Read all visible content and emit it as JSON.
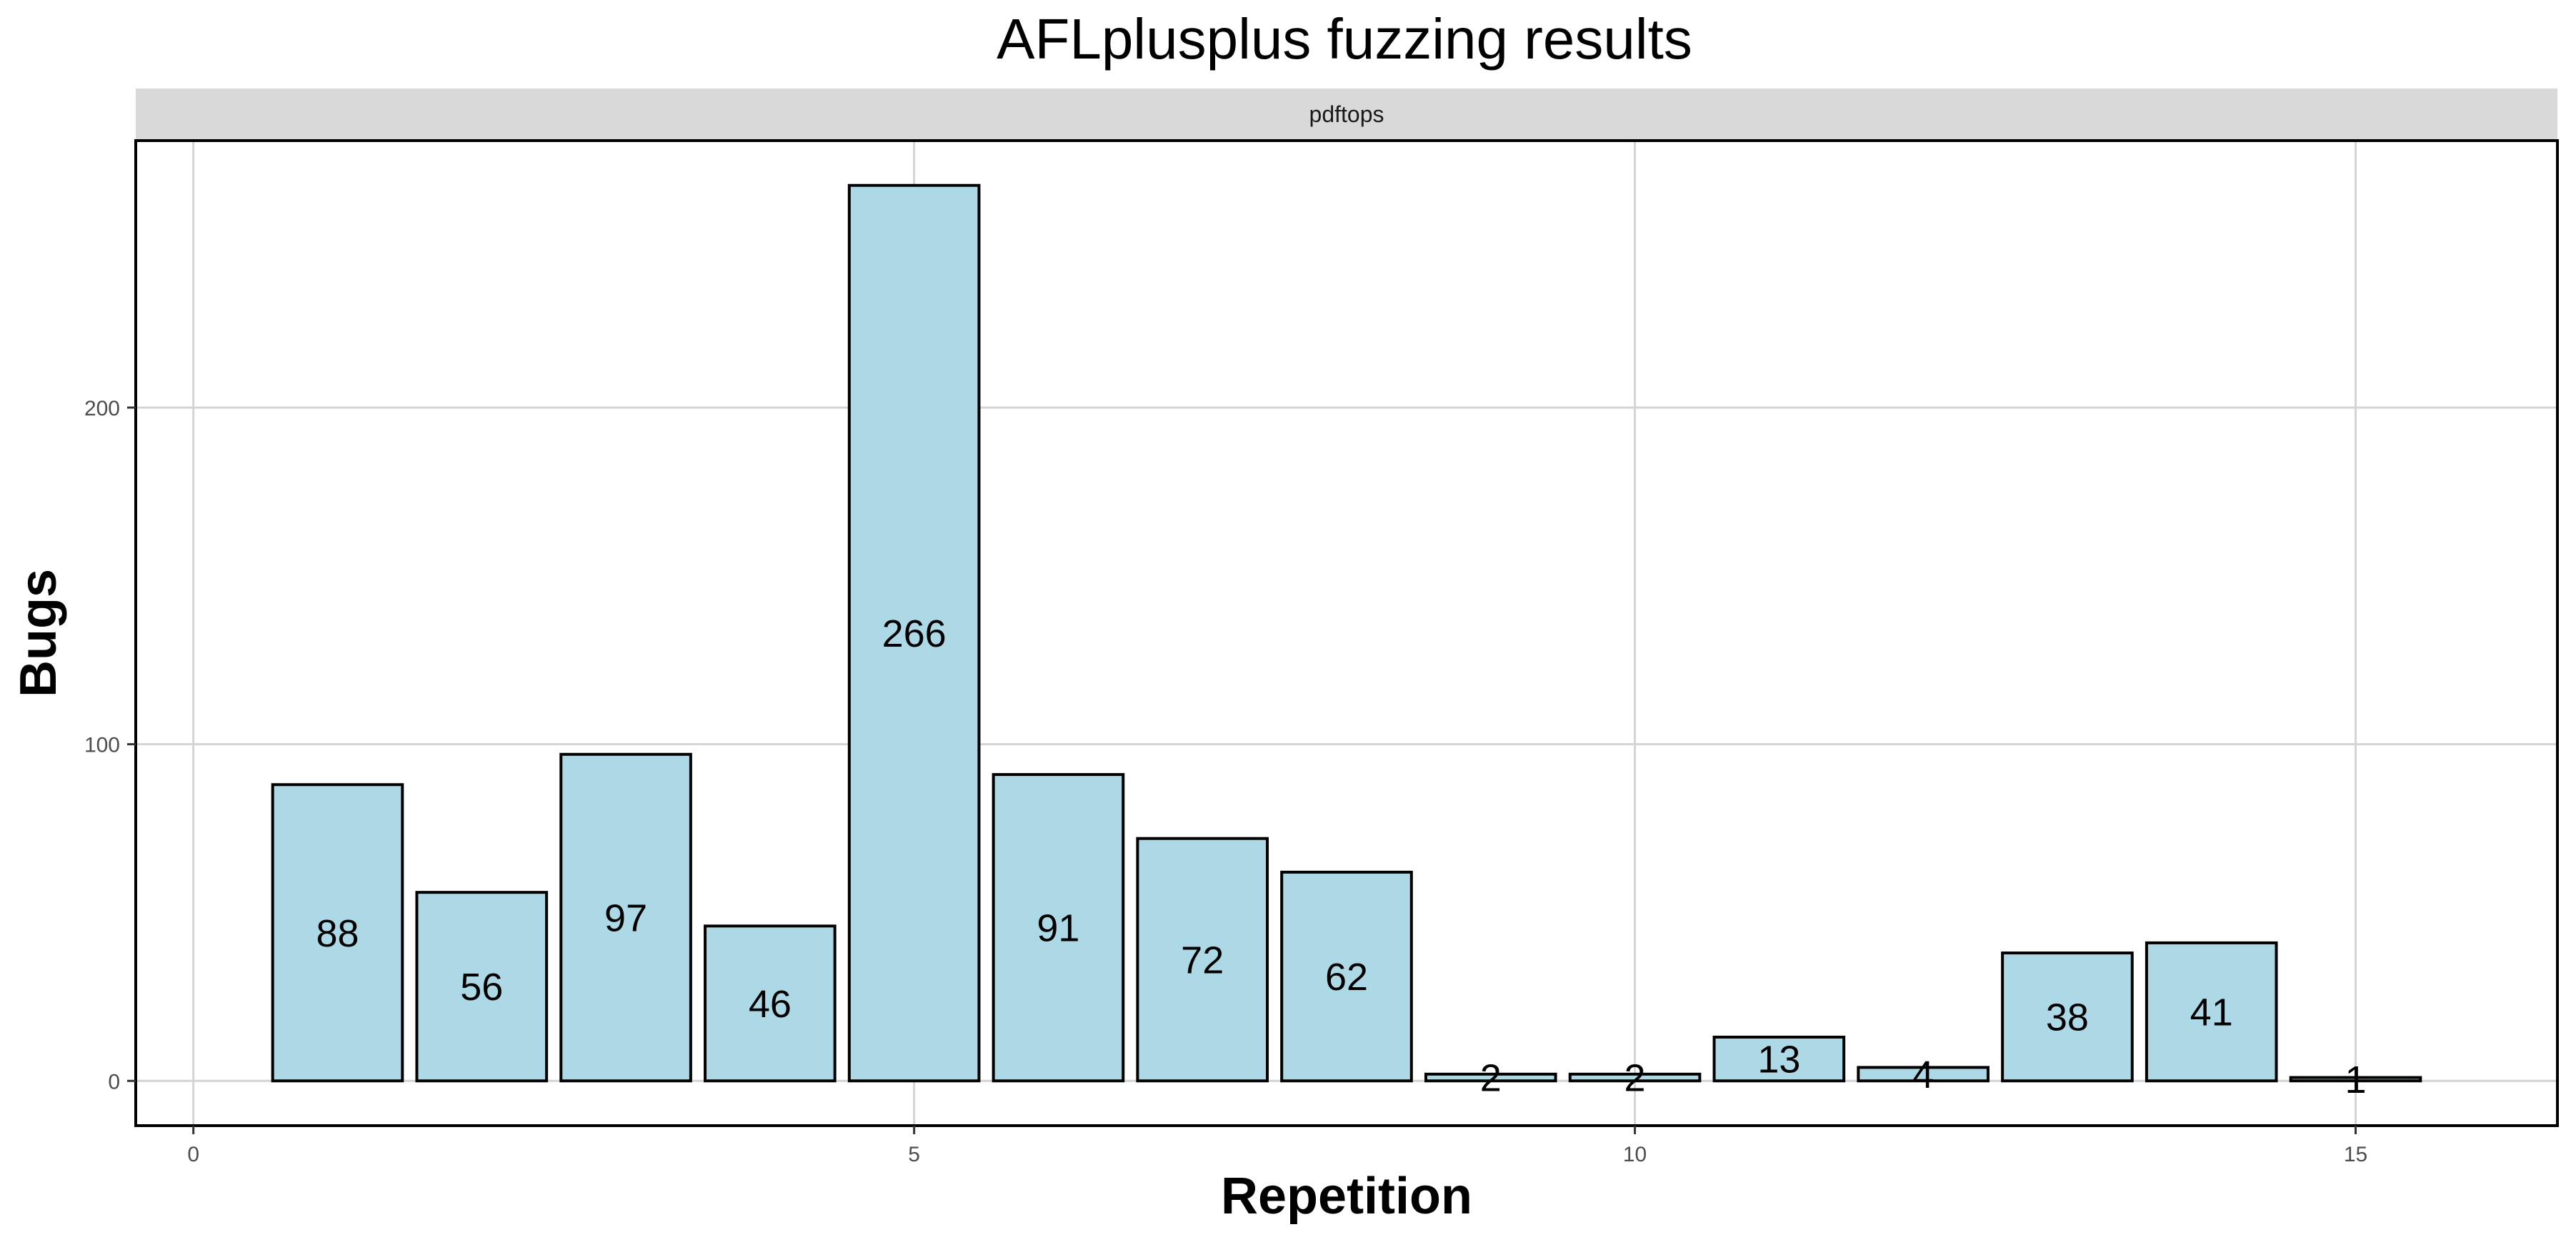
{
  "chart_data": {
    "type": "bar",
    "title": "AFLplusplus fuzzing results",
    "facet_label": "pdftops",
    "xlabel": "Repetition",
    "ylabel": "Bugs",
    "x": [
      1,
      2,
      3,
      4,
      5,
      6,
      7,
      8,
      9,
      10,
      11,
      12,
      13,
      14,
      15
    ],
    "values": [
      88,
      56,
      97,
      46,
      266,
      91,
      72,
      62,
      2,
      2,
      13,
      4,
      38,
      41,
      1
    ],
    "data_labels": [
      "88",
      "56",
      "97",
      "46",
      "266",
      "91",
      "72",
      "62",
      "2",
      "2",
      "13",
      "4",
      "38",
      "41",
      "1"
    ],
    "xlim": [
      -0.4,
      16.4
    ],
    "ylim": [
      -13.3,
      279.3
    ],
    "x_ticks": [
      0,
      5,
      10,
      15
    ],
    "x_tick_labels": [
      "0",
      "5",
      "10",
      "15"
    ],
    "y_ticks": [
      0,
      100,
      200
    ],
    "y_tick_labels": [
      "0",
      "100",
      "200"
    ],
    "bar_width": 0.9,
    "grid": true,
    "legend": "none",
    "colors": {
      "bar_fill": "#add8e6",
      "bar_stroke": "#000000",
      "strip_fill": "#d9d9d9",
      "grid": "#d4d4d4"
    }
  }
}
